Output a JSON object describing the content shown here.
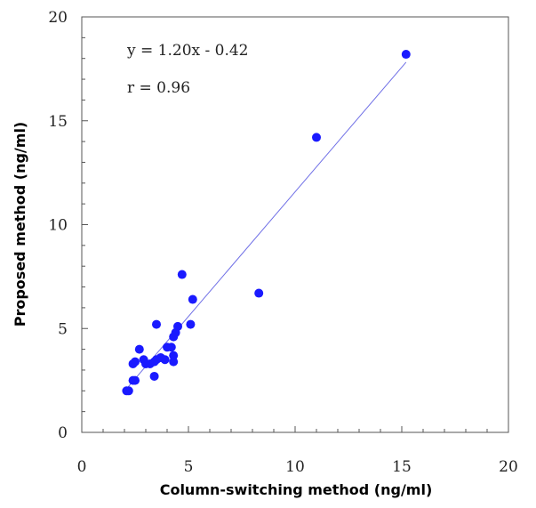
{
  "chart_data": {
    "type": "scatter",
    "xlabel": "Column-switching method (ng/ml)",
    "ylabel": "Proposed method (ng/ml)",
    "xlim": [
      0,
      20
    ],
    "ylim": [
      0,
      20
    ],
    "x_ticks": [
      "0",
      "5",
      "10",
      "15",
      "20"
    ],
    "y_ticks": [
      "0",
      "5",
      "10",
      "15",
      "20"
    ],
    "grid": false,
    "annotations": [
      "y = 1.20x - 0.42",
      "r = 0.96"
    ],
    "regression": {
      "slope": 1.2,
      "intercept": -0.42,
      "x_range": [
        2.1,
        15.2
      ]
    },
    "colors": {
      "points": "#1a1aff",
      "line": "#6f6fe6"
    },
    "points": [
      {
        "x": 2.1,
        "y": 2.0
      },
      {
        "x": 2.2,
        "y": 2.0
      },
      {
        "x": 2.4,
        "y": 2.5
      },
      {
        "x": 2.5,
        "y": 2.5
      },
      {
        "x": 2.4,
        "y": 3.3
      },
      {
        "x": 2.5,
        "y": 3.4
      },
      {
        "x": 2.7,
        "y": 4.0
      },
      {
        "x": 2.9,
        "y": 3.5
      },
      {
        "x": 3.0,
        "y": 3.3
      },
      {
        "x": 3.2,
        "y": 3.3
      },
      {
        "x": 3.4,
        "y": 2.7
      },
      {
        "x": 3.4,
        "y": 3.4
      },
      {
        "x": 3.5,
        "y": 5.2
      },
      {
        "x": 3.5,
        "y": 3.5
      },
      {
        "x": 3.7,
        "y": 3.6
      },
      {
        "x": 3.9,
        "y": 3.5
      },
      {
        "x": 4.0,
        "y": 4.1
      },
      {
        "x": 4.2,
        "y": 4.1
      },
      {
        "x": 4.3,
        "y": 3.7
      },
      {
        "x": 4.3,
        "y": 3.4
      },
      {
        "x": 4.3,
        "y": 4.6
      },
      {
        "x": 4.4,
        "y": 4.8
      },
      {
        "x": 4.5,
        "y": 5.1
      },
      {
        "x": 4.7,
        "y": 7.6
      },
      {
        "x": 5.1,
        "y": 5.2
      },
      {
        "x": 5.2,
        "y": 6.4
      },
      {
        "x": 8.3,
        "y": 6.7
      },
      {
        "x": 11.0,
        "y": 14.2
      },
      {
        "x": 15.2,
        "y": 18.2
      }
    ]
  }
}
